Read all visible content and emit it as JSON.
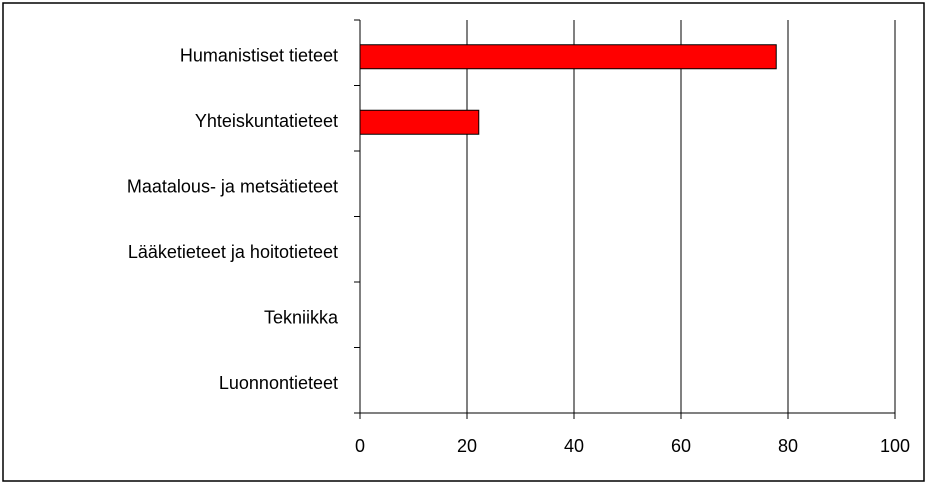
{
  "chart_data": {
    "type": "barh",
    "categories": [
      "Humanistiset tieteet",
      "Yhteiskuntatieteet",
      "Maatalous- ja metsätieteet",
      "Lääketieteet ja hoitotieteet",
      "Tekniikka",
      "Luonnontieteet"
    ],
    "values": [
      77.8,
      22.2,
      0,
      0,
      0,
      0
    ],
    "color": "#ff0000",
    "xlim": [
      0,
      100
    ],
    "xticks": [
      0,
      20,
      40,
      60,
      80,
      100
    ],
    "grid": true
  }
}
